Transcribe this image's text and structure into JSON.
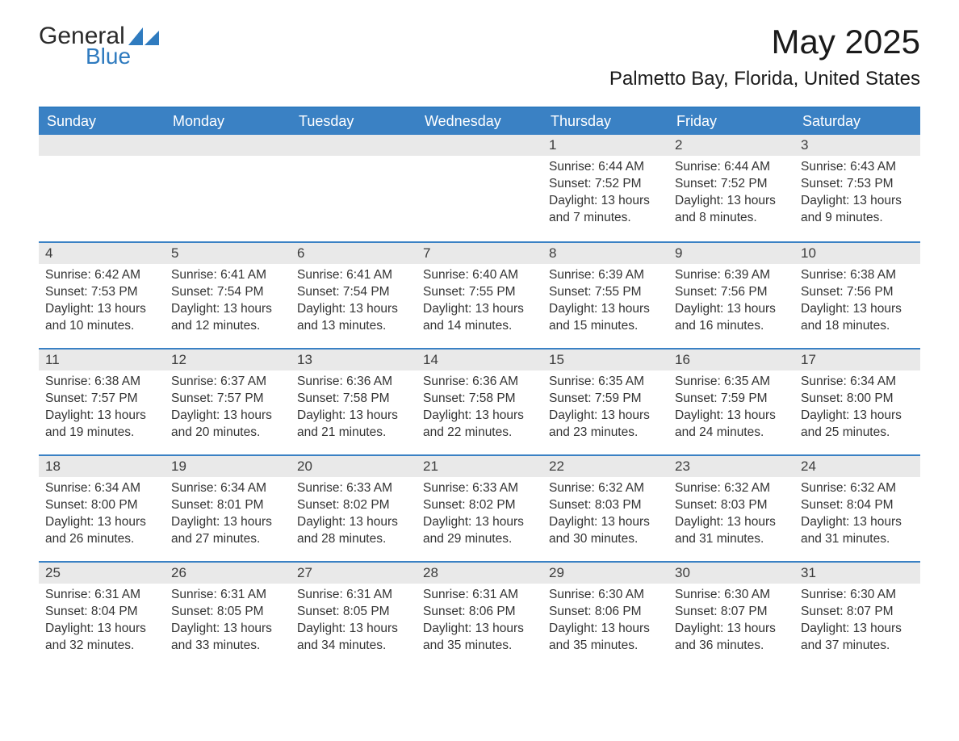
{
  "logo": {
    "text1": "General",
    "text2": "Blue",
    "shape_color": "#2f7bbf"
  },
  "title": "May 2025",
  "location": "Palmetto Bay, Florida, United States",
  "colors": {
    "header_bg": "#3a81c4",
    "header_text": "#ffffff",
    "row_divider": "#3a81c4",
    "daynum_bg": "#e9e9e9",
    "text": "#333333",
    "background": "#ffffff"
  },
  "day_headers": [
    "Sunday",
    "Monday",
    "Tuesday",
    "Wednesday",
    "Thursday",
    "Friday",
    "Saturday"
  ],
  "weeks": [
    [
      {
        "day": "",
        "sunrise": "",
        "sunset": "",
        "daylight": ""
      },
      {
        "day": "",
        "sunrise": "",
        "sunset": "",
        "daylight": ""
      },
      {
        "day": "",
        "sunrise": "",
        "sunset": "",
        "daylight": ""
      },
      {
        "day": "",
        "sunrise": "",
        "sunset": "",
        "daylight": ""
      },
      {
        "day": "1",
        "sunrise": "Sunrise: 6:44 AM",
        "sunset": "Sunset: 7:52 PM",
        "daylight": "Daylight: 13 hours and 7 minutes."
      },
      {
        "day": "2",
        "sunrise": "Sunrise: 6:44 AM",
        "sunset": "Sunset: 7:52 PM",
        "daylight": "Daylight: 13 hours and 8 minutes."
      },
      {
        "day": "3",
        "sunrise": "Sunrise: 6:43 AM",
        "sunset": "Sunset: 7:53 PM",
        "daylight": "Daylight: 13 hours and 9 minutes."
      }
    ],
    [
      {
        "day": "4",
        "sunrise": "Sunrise: 6:42 AM",
        "sunset": "Sunset: 7:53 PM",
        "daylight": "Daylight: 13 hours and 10 minutes."
      },
      {
        "day": "5",
        "sunrise": "Sunrise: 6:41 AM",
        "sunset": "Sunset: 7:54 PM",
        "daylight": "Daylight: 13 hours and 12 minutes."
      },
      {
        "day": "6",
        "sunrise": "Sunrise: 6:41 AM",
        "sunset": "Sunset: 7:54 PM",
        "daylight": "Daylight: 13 hours and 13 minutes."
      },
      {
        "day": "7",
        "sunrise": "Sunrise: 6:40 AM",
        "sunset": "Sunset: 7:55 PM",
        "daylight": "Daylight: 13 hours and 14 minutes."
      },
      {
        "day": "8",
        "sunrise": "Sunrise: 6:39 AM",
        "sunset": "Sunset: 7:55 PM",
        "daylight": "Daylight: 13 hours and 15 minutes."
      },
      {
        "day": "9",
        "sunrise": "Sunrise: 6:39 AM",
        "sunset": "Sunset: 7:56 PM",
        "daylight": "Daylight: 13 hours and 16 minutes."
      },
      {
        "day": "10",
        "sunrise": "Sunrise: 6:38 AM",
        "sunset": "Sunset: 7:56 PM",
        "daylight": "Daylight: 13 hours and 18 minutes."
      }
    ],
    [
      {
        "day": "11",
        "sunrise": "Sunrise: 6:38 AM",
        "sunset": "Sunset: 7:57 PM",
        "daylight": "Daylight: 13 hours and 19 minutes."
      },
      {
        "day": "12",
        "sunrise": "Sunrise: 6:37 AM",
        "sunset": "Sunset: 7:57 PM",
        "daylight": "Daylight: 13 hours and 20 minutes."
      },
      {
        "day": "13",
        "sunrise": "Sunrise: 6:36 AM",
        "sunset": "Sunset: 7:58 PM",
        "daylight": "Daylight: 13 hours and 21 minutes."
      },
      {
        "day": "14",
        "sunrise": "Sunrise: 6:36 AM",
        "sunset": "Sunset: 7:58 PM",
        "daylight": "Daylight: 13 hours and 22 minutes."
      },
      {
        "day": "15",
        "sunrise": "Sunrise: 6:35 AM",
        "sunset": "Sunset: 7:59 PM",
        "daylight": "Daylight: 13 hours and 23 minutes."
      },
      {
        "day": "16",
        "sunrise": "Sunrise: 6:35 AM",
        "sunset": "Sunset: 7:59 PM",
        "daylight": "Daylight: 13 hours and 24 minutes."
      },
      {
        "day": "17",
        "sunrise": "Sunrise: 6:34 AM",
        "sunset": "Sunset: 8:00 PM",
        "daylight": "Daylight: 13 hours and 25 minutes."
      }
    ],
    [
      {
        "day": "18",
        "sunrise": "Sunrise: 6:34 AM",
        "sunset": "Sunset: 8:00 PM",
        "daylight": "Daylight: 13 hours and 26 minutes."
      },
      {
        "day": "19",
        "sunrise": "Sunrise: 6:34 AM",
        "sunset": "Sunset: 8:01 PM",
        "daylight": "Daylight: 13 hours and 27 minutes."
      },
      {
        "day": "20",
        "sunrise": "Sunrise: 6:33 AM",
        "sunset": "Sunset: 8:02 PM",
        "daylight": "Daylight: 13 hours and 28 minutes."
      },
      {
        "day": "21",
        "sunrise": "Sunrise: 6:33 AM",
        "sunset": "Sunset: 8:02 PM",
        "daylight": "Daylight: 13 hours and 29 minutes."
      },
      {
        "day": "22",
        "sunrise": "Sunrise: 6:32 AM",
        "sunset": "Sunset: 8:03 PM",
        "daylight": "Daylight: 13 hours and 30 minutes."
      },
      {
        "day": "23",
        "sunrise": "Sunrise: 6:32 AM",
        "sunset": "Sunset: 8:03 PM",
        "daylight": "Daylight: 13 hours and 31 minutes."
      },
      {
        "day": "24",
        "sunrise": "Sunrise: 6:32 AM",
        "sunset": "Sunset: 8:04 PM",
        "daylight": "Daylight: 13 hours and 31 minutes."
      }
    ],
    [
      {
        "day": "25",
        "sunrise": "Sunrise: 6:31 AM",
        "sunset": "Sunset: 8:04 PM",
        "daylight": "Daylight: 13 hours and 32 minutes."
      },
      {
        "day": "26",
        "sunrise": "Sunrise: 6:31 AM",
        "sunset": "Sunset: 8:05 PM",
        "daylight": "Daylight: 13 hours and 33 minutes."
      },
      {
        "day": "27",
        "sunrise": "Sunrise: 6:31 AM",
        "sunset": "Sunset: 8:05 PM",
        "daylight": "Daylight: 13 hours and 34 minutes."
      },
      {
        "day": "28",
        "sunrise": "Sunrise: 6:31 AM",
        "sunset": "Sunset: 8:06 PM",
        "daylight": "Daylight: 13 hours and 35 minutes."
      },
      {
        "day": "29",
        "sunrise": "Sunrise: 6:30 AM",
        "sunset": "Sunset: 8:06 PM",
        "daylight": "Daylight: 13 hours and 35 minutes."
      },
      {
        "day": "30",
        "sunrise": "Sunrise: 6:30 AM",
        "sunset": "Sunset: 8:07 PM",
        "daylight": "Daylight: 13 hours and 36 minutes."
      },
      {
        "day": "31",
        "sunrise": "Sunrise: 6:30 AM",
        "sunset": "Sunset: 8:07 PM",
        "daylight": "Daylight: 13 hours and 37 minutes."
      }
    ]
  ]
}
